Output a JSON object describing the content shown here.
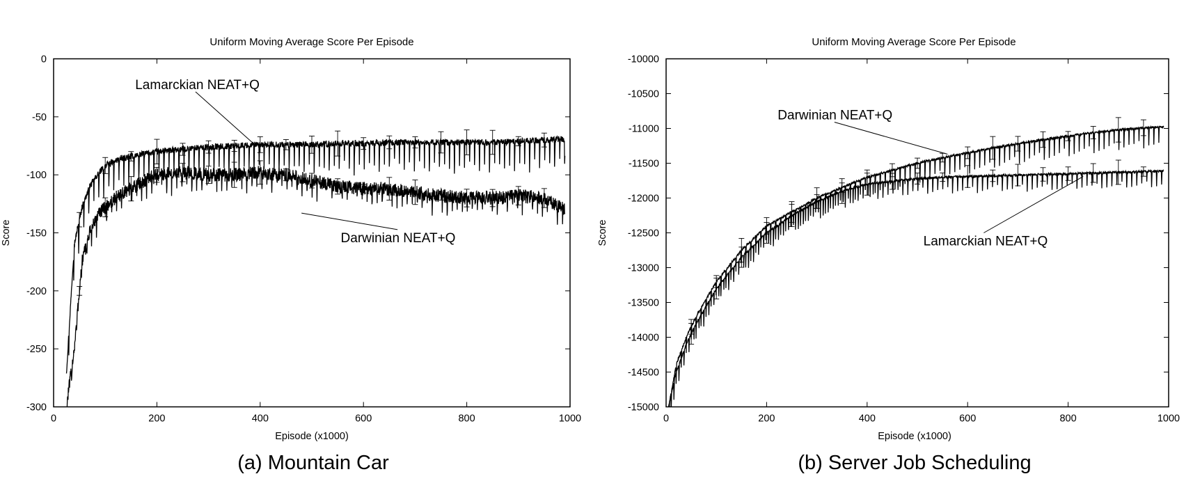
{
  "chart_data": [
    {
      "type": "line",
      "title": "Uniform Moving Average Score Per Episode",
      "xlabel": "Episode (x1000)",
      "ylabel": "Score",
      "caption": "(a) Mountain Car",
      "xlim": [
        0,
        1000
      ],
      "ylim": [
        -300,
        0
      ],
      "xticks": [
        0,
        200,
        400,
        600,
        800,
        1000
      ],
      "yticks": [
        0,
        -50,
        -100,
        -150,
        -200,
        -250,
        -300
      ],
      "grid": false,
      "series": [
        {
          "name": "Lamarckian NEAT+Q",
          "x": [
            25,
            40,
            55,
            70,
            85,
            100,
            125,
            150,
            175,
            200,
            250,
            300,
            350,
            400,
            450,
            500,
            550,
            600,
            650,
            700,
            750,
            800,
            850,
            900,
            950,
            990
          ],
          "y": [
            -270,
            -160,
            -128,
            -110,
            -100,
            -92,
            -87,
            -84,
            -82,
            -80,
            -78,
            -76,
            -75,
            -74,
            -74,
            -74,
            -73,
            -73,
            -72,
            -72,
            -72,
            -72,
            -72,
            -71,
            -70,
            -69
          ]
        },
        {
          "name": "Darwinian NEAT+Q",
          "x": [
            25,
            40,
            55,
            70,
            85,
            100,
            125,
            150,
            175,
            200,
            250,
            300,
            350,
            400,
            450,
            500,
            550,
            600,
            650,
            700,
            750,
            800,
            850,
            900,
            950,
            990
          ],
          "y": [
            -300,
            -250,
            -175,
            -150,
            -135,
            -128,
            -118,
            -112,
            -105,
            -100,
            -98,
            -100,
            -100,
            -98,
            -100,
            -105,
            -110,
            -112,
            -112,
            -115,
            -118,
            -120,
            -120,
            -118,
            -120,
            -130
          ]
        }
      ],
      "annotations": [
        {
          "text": "Lamarckian NEAT+Q",
          "x": 158,
          "y": -26,
          "arrow_to": [
            392,
            -75
          ]
        },
        {
          "text": "Darwinian NEAT+Q",
          "x": 556,
          "y": -158,
          "arrow_to": [
            480,
            -133
          ]
        }
      ]
    },
    {
      "type": "line",
      "title": "Uniform Moving Average Score Per Episode",
      "xlabel": "Episode (x1000)",
      "ylabel": "Score",
      "caption": "(b) Server Job Scheduling",
      "xlim": [
        0,
        1000
      ],
      "ylim": [
        -15000,
        -10000
      ],
      "xticks": [
        0,
        200,
        400,
        600,
        800,
        1000
      ],
      "yticks": [
        -10000,
        -10500,
        -11000,
        -11500,
        -12000,
        -12500,
        -13000,
        -13500,
        -14000,
        -14500,
        -15000
      ],
      "grid": false,
      "series": [
        {
          "name": "Darwinian NEAT+Q",
          "x": [
            5,
            20,
            40,
            60,
            80,
            100,
            150,
            200,
            250,
            300,
            350,
            400,
            450,
            500,
            550,
            600,
            650,
            700,
            750,
            800,
            850,
            900,
            950,
            990
          ],
          "y": [
            -15000,
            -14400,
            -14000,
            -13700,
            -13450,
            -13200,
            -12750,
            -12400,
            -12200,
            -12000,
            -11850,
            -11700,
            -11600,
            -11500,
            -11420,
            -11350,
            -11280,
            -11220,
            -11160,
            -11110,
            -11060,
            -11020,
            -10990,
            -10980
          ]
        },
        {
          "name": "Lamarckian NEAT+Q",
          "x": [
            5,
            20,
            40,
            60,
            80,
            100,
            150,
            200,
            250,
            300,
            350,
            400,
            450,
            500,
            550,
            600,
            650,
            700,
            750,
            800,
            850,
            900,
            950,
            990
          ],
          "y": [
            -15000,
            -14500,
            -14100,
            -13800,
            -13550,
            -13300,
            -12850,
            -12500,
            -12250,
            -12050,
            -11900,
            -11800,
            -11760,
            -11720,
            -11700,
            -11690,
            -11680,
            -11670,
            -11660,
            -11650,
            -11640,
            -11630,
            -11620,
            -11610
          ]
        }
      ],
      "annotations": [
        {
          "text": "Darwinian NEAT+Q",
          "x": 222,
          "y": -10870,
          "arrow_to": [
            560,
            -11370
          ]
        },
        {
          "text": "Lamarckian NEAT+Q",
          "x": 512,
          "y": -12680,
          "arrow_to": [
            830,
            -11690
          ]
        }
      ]
    }
  ]
}
